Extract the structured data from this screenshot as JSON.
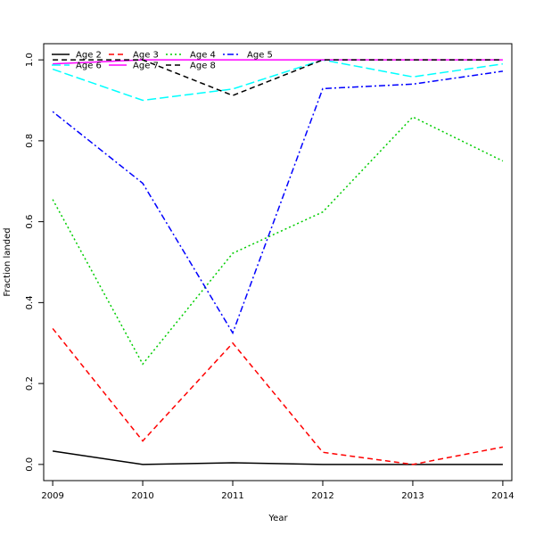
{
  "chart_data": {
    "type": "line",
    "title": "",
    "xlabel": "Year",
    "ylabel": "Fraction landed",
    "x": [
      2009,
      2010,
      2011,
      2012,
      2013,
      2014
    ],
    "xlim": [
      2008.9,
      2014.1
    ],
    "ylim": [
      -0.04,
      1.04
    ],
    "xticks": [
      "2009",
      "2010",
      "2011",
      "2012",
      "2013",
      "2014"
    ],
    "yticks": [
      "0.0",
      "0.2",
      "0.4",
      "0.6",
      "0.8",
      "1.0"
    ],
    "grid": false,
    "legend_position": "top-left",
    "series": [
      {
        "name": "Age 2",
        "color": "#000000",
        "dash": "solid",
        "values": [
          0.033,
          0.0,
          0.004,
          0.0,
          0.0,
          0.0
        ]
      },
      {
        "name": "Age 3",
        "color": "#ff0000",
        "dash": "dashed",
        "values": [
          0.336,
          0.058,
          0.3,
          0.03,
          0.0,
          0.043
        ]
      },
      {
        "name": "Age 4",
        "color": "#00cd00",
        "dash": "dotted",
        "values": [
          0.655,
          0.248,
          0.522,
          0.624,
          0.859,
          0.75
        ]
      },
      {
        "name": "Age 5",
        "color": "#0000ff",
        "dash": "dotdash",
        "values": [
          0.872,
          0.695,
          0.325,
          0.929,
          0.94,
          0.972
        ]
      },
      {
        "name": "Age 6",
        "color": "#00ffff",
        "dash": "longdash",
        "values": [
          0.977,
          0.9,
          0.928,
          1.0,
          0.958,
          0.99
        ]
      },
      {
        "name": "Age 7",
        "color": "#ff00ff",
        "dash": "solid",
        "values": [
          0.99,
          1.0,
          1.0,
          1.0,
          1.0,
          1.0
        ]
      },
      {
        "name": "Age 8",
        "color": "#000000",
        "dash": "dashed",
        "values": [
          1.0,
          1.0,
          0.912,
          1.0,
          1.0,
          1.0
        ]
      }
    ]
  }
}
